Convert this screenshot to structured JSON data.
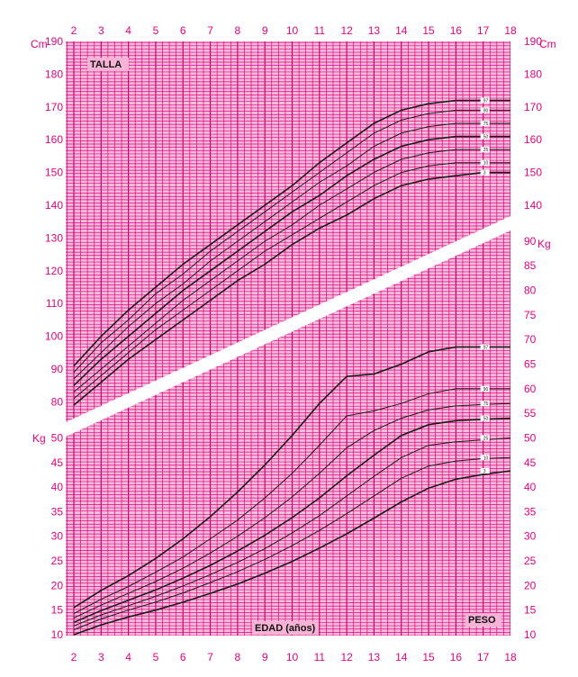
{
  "chart_data": [
    {
      "type": "line",
      "title": "TALLA",
      "xlabel": "EDAD (años)",
      "ylabel": "Cm",
      "xlim": [
        2,
        18
      ],
      "ylim": [
        75,
        190
      ],
      "x": [
        2,
        3,
        4,
        5,
        6,
        7,
        8,
        9,
        10,
        11,
        12,
        13,
        14,
        15,
        16,
        17,
        18
      ],
      "y_ticks": [
        80,
        90,
        100,
        110,
        120,
        130,
        140,
        150,
        160,
        170,
        180,
        190
      ],
      "series": [
        {
          "name": "97",
          "values": [
            91,
            100,
            108,
            115,
            122,
            128,
            134,
            140,
            146,
            153,
            159,
            165,
            169,
            171,
            172,
            172,
            172
          ]
        },
        {
          "name": "90",
          "values": [
            89,
            98,
            105,
            113,
            119,
            126,
            132,
            138,
            144,
            150,
            156,
            162,
            166,
            168,
            169,
            169,
            169
          ]
        },
        {
          "name": "75",
          "values": [
            87,
            95,
            103,
            110,
            116,
            123,
            129,
            135,
            141,
            147,
            152,
            158,
            162,
            164,
            165,
            165,
            165
          ]
        },
        {
          "name": "50",
          "values": [
            85,
            93,
            100,
            107,
            114,
            120,
            126,
            132,
            138,
            143,
            149,
            154,
            158,
            160,
            161,
            161,
            161
          ]
        },
        {
          "name": "25",
          "values": [
            83,
            90,
            97,
            104,
            111,
            117,
            123,
            129,
            134,
            140,
            145,
            150,
            154,
            156,
            157,
            157,
            157
          ]
        },
        {
          "name": "10",
          "values": [
            81,
            88,
            95,
            102,
            108,
            114,
            120,
            126,
            131,
            136,
            141,
            146,
            150,
            152,
            153,
            153,
            153
          ]
        },
        {
          "name": "3",
          "values": [
            79,
            86,
            93,
            99,
            105,
            111,
            117,
            122,
            128,
            133,
            137,
            142,
            146,
            148,
            149,
            150,
            150
          ]
        }
      ]
    },
    {
      "type": "line",
      "title": "PESO",
      "xlabel": "EDAD (años)",
      "ylabel": "Kg",
      "xlim": [
        2,
        18
      ],
      "ylim": [
        9,
        90
      ],
      "x": [
        2,
        3,
        4,
        5,
        6,
        7,
        8,
        9,
        10,
        11,
        12,
        13,
        14,
        15,
        16,
        17,
        18
      ],
      "y_ticks": [
        10,
        15,
        20,
        25,
        30,
        35,
        40,
        45,
        50,
        55,
        60,
        65,
        70,
        75,
        80,
        85,
        90
      ],
      "series": [
        {
          "name": "97",
          "values": [
            15.5,
            19,
            22,
            25.5,
            29.5,
            34,
            39,
            44.5,
            50.5,
            57,
            62.5,
            63,
            65,
            67.5,
            68.5,
            68.5,
            68.5
          ]
        },
        {
          "name": "90",
          "values": [
            14.3,
            17.2,
            19.8,
            22.7,
            25.8,
            29.5,
            33.3,
            37.8,
            42.8,
            48.5,
            54.5,
            55.5,
            57,
            59,
            60,
            60,
            60
          ]
        },
        {
          "name": "75",
          "values": [
            13.4,
            16,
            18.4,
            20.8,
            23.5,
            26.6,
            30,
            33.8,
            38,
            42.8,
            48,
            51.5,
            54,
            55.7,
            56.5,
            56.8,
            57
          ]
        },
        {
          "name": "50",
          "values": [
            12.5,
            14.9,
            17,
            19.1,
            21.5,
            24.1,
            27,
            30.2,
            33.8,
            37.8,
            42.3,
            46.5,
            50.5,
            52.7,
            53.5,
            53.8,
            54
          ]
        },
        {
          "name": "25",
          "values": [
            11.8,
            14,
            15.9,
            17.8,
            19.9,
            22.2,
            24.7,
            27.5,
            30.7,
            34.2,
            38.2,
            42.2,
            46,
            48.5,
            49.2,
            49.6,
            50
          ]
        },
        {
          "name": "10",
          "values": [
            11,
            13.2,
            15,
            16.6,
            18.5,
            20.6,
            22.8,
            25.3,
            28.1,
            31.2,
            34.6,
            38.2,
            41.8,
            44.3,
            45.3,
            45.8,
            46
          ]
        },
        {
          "name": "3",
          "values": [
            10,
            12,
            13.6,
            15,
            16.6,
            18.4,
            20.3,
            22.5,
            24.9,
            27.6,
            30.5,
            33.7,
            37,
            39.8,
            41.6,
            42.6,
            43.3
          ]
        }
      ]
    }
  ]
}
